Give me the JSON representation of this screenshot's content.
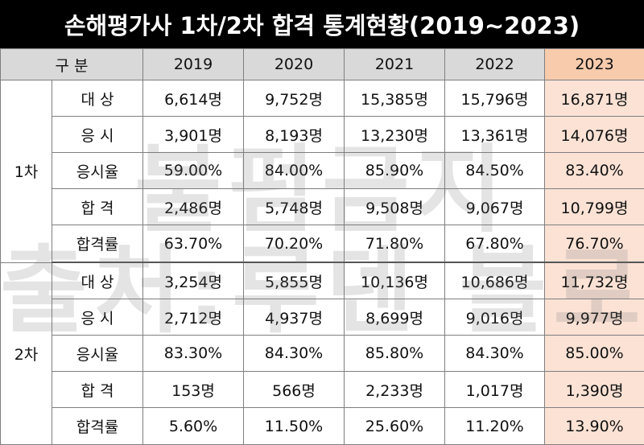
{
  "title": "손해평가사 1차/2차 합격 통계현황(2019~2023)",
  "header": {
    "category": "구 분",
    "years": [
      "2019",
      "2020",
      "2021",
      "2022",
      "2023"
    ]
  },
  "groups": [
    {
      "name": "1차",
      "rows": [
        {
          "label": "대 상",
          "values": [
            "6,614명",
            "9,752명",
            "15,385명",
            "15,796명",
            "16,871명"
          ]
        },
        {
          "label": "응 시",
          "values": [
            "3,901명",
            "8,193명",
            "13,230명",
            "13,361명",
            "14,076명"
          ]
        },
        {
          "label": "응시율",
          "values": [
            "59.00%",
            "84.00%",
            "85.90%",
            "84.50%",
            "83.40%"
          ]
        },
        {
          "label": "합 격",
          "values": [
            "2,486명",
            "5,748명",
            "9,508명",
            "9,067명",
            "10,799명"
          ]
        },
        {
          "label": "합격률",
          "values": [
            "63.70%",
            "70.20%",
            "71.80%",
            "67.80%",
            "76.70%"
          ]
        }
      ]
    },
    {
      "name": "2차",
      "rows": [
        {
          "label": "대 상",
          "values": [
            "3,254명",
            "5,855명",
            "10,136명",
            "10,686명",
            "11,732명"
          ]
        },
        {
          "label": "응 시",
          "values": [
            "2,712명",
            "4,937명",
            "8,699명",
            "9,016명",
            "9,977명"
          ]
        },
        {
          "label": "응시율",
          "values": [
            "83.30%",
            "84.30%",
            "85.80%",
            "84.30%",
            "85.00%"
          ]
        },
        {
          "label": "합 격",
          "values": [
            "153명",
            "566명",
            "2,233명",
            "1,017명",
            "1,390명"
          ]
        },
        {
          "label": "합격률",
          "values": [
            "5.60%",
            "11.50%",
            "25.60%",
            "11.20%",
            "13.90%"
          ]
        }
      ]
    }
  ],
  "watermark": {
    "line1": "불펌금지",
    "line2": "출처:루덴 블로그"
  },
  "colors": {
    "title_bg": "#000000",
    "header_bg": "#d9d9d9",
    "highlight_header": "#f8cbad",
    "highlight_cell": "#fbe2d5"
  }
}
